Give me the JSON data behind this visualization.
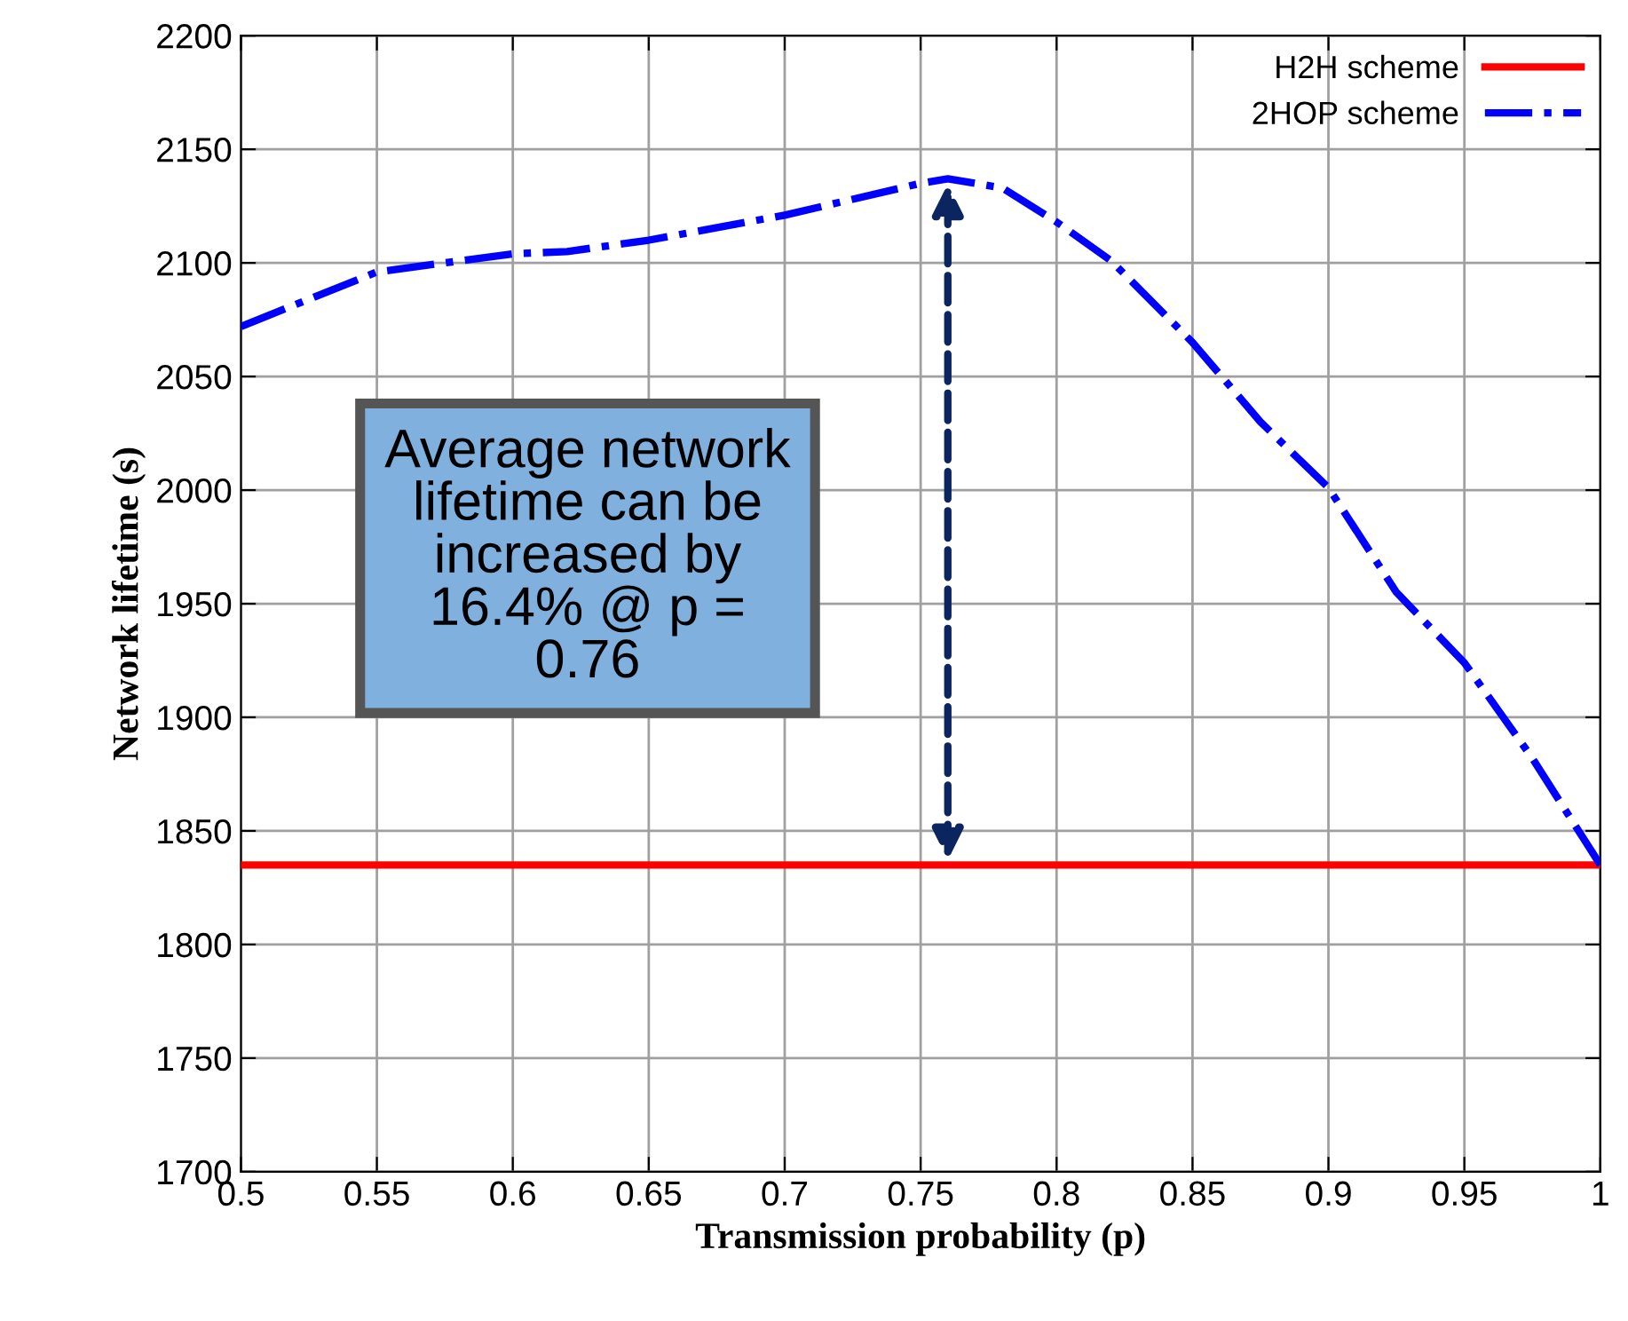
{
  "chart_data": {
    "type": "line",
    "xlabel": "Transmission probability (p)",
    "ylabel": "Network lifetime (s)",
    "xlim": [
      0.5,
      1
    ],
    "xticks": [
      0.5,
      0.55,
      0.6,
      0.65,
      0.7,
      0.75,
      0.8,
      0.85,
      0.9,
      0.95,
      1
    ],
    "ylim": [
      1700,
      2200
    ],
    "yticks": [
      1700,
      1750,
      1800,
      1850,
      1900,
      1950,
      2000,
      2050,
      2100,
      2150,
      2200
    ],
    "grid": true,
    "legend": "top right",
    "series": [
      {
        "name": "H2H scheme",
        "color": "#ff0000",
        "line_style": "solid",
        "x": [
          0.5,
          1
        ],
        "values": [
          1835,
          1835
        ]
      },
      {
        "name": "2HOP scheme",
        "color": "#0000ff",
        "line_style": "dashdot",
        "x": [
          0.5,
          0.55,
          0.6,
          0.62,
          0.65,
          0.7,
          0.75,
          0.76,
          0.78,
          0.8,
          0.82,
          0.85,
          0.875,
          0.9,
          0.925,
          0.95,
          0.975,
          1
        ],
        "values": [
          2072,
          2096,
          2104,
          2105,
          2110,
          2121,
          2135,
          2137,
          2133,
          2118,
          2101,
          2065,
          2030,
          2001,
          1955,
          1924,
          1882,
          1835
        ]
      }
    ],
    "annotations": [
      "Average network\nlifetime can be\nincreased by\n16.4% @ p =\n0.76"
    ]
  }
}
